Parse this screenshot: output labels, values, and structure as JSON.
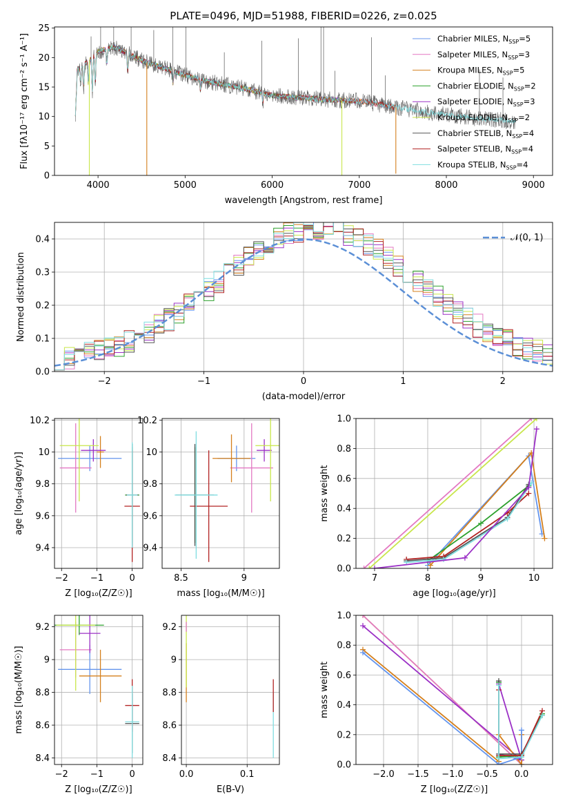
{
  "chart_data": [
    {
      "id": "spectrum",
      "type": "line",
      "title": "PLATE=0496, MJD=51988, FIBERID=0226, z=0.025",
      "xlabel": "wavelength [Angstrom, rest frame]",
      "ylabel": "Flux [fλ10⁻¹⁷ erg cm⁻² s⁻¹ A⁻¹]",
      "xlim": [
        3500,
        9220
      ],
      "ylim": [
        0,
        25.2
      ],
      "xticks": [
        4000,
        5000,
        6000,
        7000,
        8000,
        9000
      ],
      "yticks": [
        0,
        5,
        10,
        15,
        20,
        25
      ],
      "legend_position": "upper-right",
      "continuum_x": [
        3750,
        3800,
        3900,
        4000,
        4100,
        4200,
        4300,
        4500,
        4700,
        5000,
        5300,
        5600,
        6000,
        6300,
        6600,
        7000,
        7300,
        7600,
        8000,
        8300,
        8600,
        8800
      ],
      "continuum_y": [
        17.5,
        18.5,
        19.5,
        21.0,
        21.5,
        21.8,
        21.0,
        19.5,
        18.5,
        17.0,
        15.8,
        15.0,
        13.6,
        13.2,
        12.9,
        12.6,
        11.9,
        11.1,
        10.3,
        9.8,
        9.4,
        9.2
      ],
      "series": [
        {
          "name": "Chabrier MILES, N_SSP=5",
          "color": "#6495ed",
          "x_end": 7420
        },
        {
          "name": "Salpeter MILES, N_SSP=3",
          "color": "#e377c2",
          "x_end": 7420
        },
        {
          "name": "Kroupa MILES, N_SSP=5",
          "color": "#d47f1b",
          "x_end": 7420
        },
        {
          "name": "Chabrier ELODIE, N_SSP=2",
          "color": "#2ca02c",
          "x_end": 6800
        },
        {
          "name": "Salpeter ELODIE, N_SSP=3",
          "color": "#9b30c6",
          "x_end": 6800
        },
        {
          "name": "Kroupa ELODIE, N_SSP=2",
          "color": "#c8e64a",
          "x_end": 6800
        },
        {
          "name": "Chabrier STELIB, N_SSP=4",
          "color": "#555555",
          "x_end": 8800
        },
        {
          "name": "Salpeter STELIB, N_SSP=4",
          "color": "#b22222",
          "x_end": 7420
        },
        {
          "name": "Kroupa STELIB, N_SSP=4",
          "color": "#7fdde0",
          "x_end": 8800
        }
      ],
      "drops": [
        {
          "x": 3900,
          "y": 0,
          "color": "#c8e64a"
        },
        {
          "x": 4560,
          "y": 0,
          "color": "#d47f1b"
        },
        {
          "x": 6800,
          "y": 0,
          "color": "#c8e64a"
        },
        {
          "x": 7420,
          "y": 0.3,
          "color": "#d47f1b"
        }
      ],
      "spikes_x": [
        3920,
        4030,
        4180,
        4380,
        4640,
        4860,
        5010,
        5450,
        5880,
        6300,
        6560,
        6590,
        6720,
        7140,
        7300,
        8380,
        8650
      ]
    },
    {
      "id": "residuals",
      "type": "line",
      "xlabel": "(data-model)/error",
      "ylabel": "Normed distribution",
      "xlim": [
        -2.5,
        2.5
      ],
      "ylim": [
        0,
        0.45
      ],
      "xticks": [
        -2,
        -1,
        0,
        1,
        2
      ],
      "yticks": [
        0.0,
        0.1,
        0.2,
        0.3,
        0.4
      ],
      "grid": true,
      "legend_position": "upper-right",
      "normal_label": "𝒩(0, 1)",
      "normal_color": "#5b8fd6",
      "hist_bin_width": 0.1,
      "hist_x_start": -2.5,
      "hist_colors": [
        "#6495ed",
        "#e377c2",
        "#d47f1b",
        "#2ca02c",
        "#9b30c6",
        "#c8e64a",
        "#555555",
        "#b22222",
        "#7fdde0"
      ]
    },
    {
      "id": "age-z",
      "type": "scatter",
      "xlabel": "Z [log₁₀(Z/Z☉)]",
      "ylabel": "age  [log₁₀(age/yr)]",
      "xlim": [
        -2.2,
        0.3
      ],
      "ylim": [
        9.27,
        10.21
      ],
      "xticks": [
        -2,
        -1,
        0
      ],
      "yticks": [
        9.4,
        9.6,
        9.8,
        10.0,
        10.2
      ],
      "grid": true,
      "points": [
        {
          "x": -1.2,
          "y": 9.96,
          "xerr": 0.9,
          "yerr": 0.08,
          "color": "#6495ed"
        },
        {
          "x": -1.6,
          "y": 9.9,
          "xerr": 0.45,
          "yerr": 0.28,
          "color": "#e377c2"
        },
        {
          "x": -0.9,
          "y": 10.0,
          "xerr": 0.1,
          "yerr": 0.1,
          "color": "#d47f1b"
        },
        {
          "x": 0.0,
          "y": 9.73,
          "xerr": 0.2,
          "yerr": 0.3,
          "color": "#2ca02c"
        },
        {
          "x": -1.1,
          "y": 10.01,
          "xerr": 0.35,
          "yerr": 0.07,
          "color": "#9b30c6"
        },
        {
          "x": -1.5,
          "y": 10.04,
          "xerr": 0.55,
          "yerr": 0.35,
          "color": "#c8e64a"
        },
        {
          "x": 0.0,
          "y": 9.73,
          "xerr": 0.17,
          "yerr": 0.32,
          "color": "#555555"
        },
        {
          "x": 0.0,
          "y": 9.66,
          "xerr": 0.22,
          "yerr": 0.35,
          "color": "#b22222"
        },
        {
          "x": 0.0,
          "y": 9.73,
          "xerr": 0.15,
          "yerr": 0.33,
          "color": "#7fdde0"
        }
      ]
    },
    {
      "id": "age-mass",
      "type": "scatter",
      "xlabel": "mass [log₁₀(M/M☉)]",
      "ylabel": "",
      "xlim": [
        8.35,
        9.28
      ],
      "ylim": [
        9.27,
        10.21
      ],
      "xticks": [
        8.5,
        9.0
      ],
      "yticks": [
        9.4,
        9.6,
        9.8,
        10.0,
        10.2
      ],
      "grid": true,
      "points": [
        {
          "x": 8.94,
          "y": 9.96,
          "xerr": 0.15,
          "yerr": 0.08,
          "color": "#6495ed"
        },
        {
          "x": 9.06,
          "y": 9.9,
          "xerr": 0.17,
          "yerr": 0.28,
          "color": "#e377c2"
        },
        {
          "x": 8.9,
          "y": 9.96,
          "xerr": 0.15,
          "yerr": 0.15,
          "color": "#d47f1b"
        },
        {
          "x": 8.61,
          "y": 9.73,
          "xerr": 0.1,
          "yerr": 0.3,
          "color": "#2ca02c"
        },
        {
          "x": 9.16,
          "y": 10.01,
          "xerr": 0.06,
          "yerr": 0.07,
          "color": "#9b30c6"
        },
        {
          "x": 9.21,
          "y": 10.04,
          "xerr": 0.12,
          "yerr": 0.35,
          "color": "#c8e64a"
        },
        {
          "x": 8.61,
          "y": 9.73,
          "xerr": 0.15,
          "yerr": 0.32,
          "color": "#555555"
        },
        {
          "x": 8.72,
          "y": 9.66,
          "xerr": 0.15,
          "yerr": 0.35,
          "color": "#b22222"
        },
        {
          "x": 8.62,
          "y": 9.73,
          "xerr": 0.17,
          "yerr": 0.4,
          "color": "#7fdde0"
        }
      ]
    },
    {
      "id": "weight-age",
      "type": "line",
      "xlabel": "age  [log₁₀(age/yr)]",
      "ylabel": "mass weight",
      "xlim": [
        6.65,
        10.35
      ],
      "ylim": [
        0,
        1.0
      ],
      "xticks": [
        7,
        8,
        9,
        10
      ],
      "yticks": [
        0.0,
        0.2,
        0.4,
        0.6,
        0.8,
        1.0
      ],
      "grid": true,
      "series": [
        {
          "color": "#e377c2",
          "x": [
            6.8,
            9.95
          ],
          "y": [
            0.0,
            1.0
          ]
        },
        {
          "color": "#c8e64a",
          "x": [
            6.9,
            10.05
          ],
          "y": [
            0.0,
            1.0
          ]
        },
        {
          "color": "#6495ed",
          "x": [
            8.0,
            9.9,
            10.15
          ],
          "y": [
            0.02,
            0.75,
            0.23
          ]
        },
        {
          "color": "#d47f1b",
          "x": [
            8.05,
            9.95,
            10.2
          ],
          "y": [
            0.02,
            0.77,
            0.2
          ]
        },
        {
          "color": "#2ca02c",
          "x": [
            8.0,
            9.0,
            9.9
          ],
          "y": [
            0.05,
            0.3,
            0.55
          ]
        },
        {
          "color": "#555555",
          "x": [
            7.6,
            8.3,
            9.5,
            9.9
          ],
          "y": [
            0.05,
            0.07,
            0.34,
            0.56
          ]
        },
        {
          "color": "#b22222",
          "x": [
            7.6,
            8.3,
            9.5,
            9.9
          ],
          "y": [
            0.06,
            0.08,
            0.37,
            0.5
          ]
        },
        {
          "color": "#7fdde0",
          "x": [
            7.6,
            8.3,
            9.5,
            9.95
          ],
          "y": [
            0.04,
            0.06,
            0.33,
            0.57
          ]
        },
        {
          "color": "#9b30c6",
          "x": [
            7.0,
            8.7,
            9.9,
            10.05
          ],
          "y": [
            0.0,
            0.07,
            0.54,
            0.93
          ]
        }
      ]
    },
    {
      "id": "mass-z",
      "type": "scatter",
      "xlabel": "Z [log₁₀(Z/Z☉)]",
      "ylabel": "mass [log₁₀(M/M☉)]",
      "xlim": [
        -2.2,
        0.3
      ],
      "ylim": [
        8.36,
        9.27
      ],
      "xticks": [
        -2,
        -1,
        0
      ],
      "yticks": [
        8.4,
        8.6,
        8.8,
        9.0,
        9.2
      ],
      "grid": true,
      "points": [
        {
          "x": -1.2,
          "y": 8.94,
          "xerr": 0.9,
          "yerr": 0.15,
          "color": "#6495ed"
        },
        {
          "x": -1.6,
          "y": 9.06,
          "xerr": 0.45,
          "yerr": 0.17,
          "color": "#e377c2"
        },
        {
          "x": -0.9,
          "y": 8.9,
          "xerr": 0.6,
          "yerr": 0.16,
          "color": "#d47f1b"
        },
        {
          "x": -1.5,
          "y": 9.21,
          "xerr": 0.7,
          "yerr": 0.06,
          "color": "#2ca02c"
        },
        {
          "x": -1.2,
          "y": 9.16,
          "xerr": 0.3,
          "yerr": 0.12,
          "color": "#9b30c6"
        },
        {
          "x": -1.6,
          "y": 9.21,
          "xerr": 0.55,
          "yerr": 0.4,
          "color": "#c8e64a"
        },
        {
          "x": 0.0,
          "y": 8.61,
          "xerr": 0.2,
          "yerr": 0.18,
          "color": "#555555"
        },
        {
          "x": 0.0,
          "y": 8.72,
          "xerr": 0.2,
          "yerr": 0.16,
          "color": "#b22222"
        },
        {
          "x": 0.0,
          "y": 8.62,
          "xerr": 0.2,
          "yerr": 0.22,
          "color": "#7fdde0"
        }
      ]
    },
    {
      "id": "mass-ebv",
      "type": "scatter",
      "xlabel": "E(B-V)",
      "ylabel": "",
      "xlim": [
        -0.008,
        0.153
      ],
      "ylim": [
        8.36,
        9.27
      ],
      "xticks": [
        0.0,
        0.1
      ],
      "yticks": [
        8.4,
        8.6,
        8.8,
        9.0,
        9.2
      ],
      "grid": true,
      "points": [
        {
          "x": 0.0,
          "y": 8.92,
          "yerr": 0.18,
          "color": "#d47f1b"
        },
        {
          "x": 0.0,
          "y": 9.05,
          "yerr": 0.22,
          "color": "#c8e64a"
        },
        {
          "x": 0.0,
          "y": 9.2,
          "yerr": 0.03,
          "color": "#e377c2"
        },
        {
          "x": 0.143,
          "y": 8.6,
          "yerr": 0.2,
          "color": "#7fdde0"
        },
        {
          "x": 0.143,
          "y": 8.78,
          "yerr": 0.1,
          "color": "#b22222"
        }
      ]
    },
    {
      "id": "weight-z",
      "type": "line",
      "xlabel": "Z [log₁₀(Z/Z☉)]",
      "ylabel": "mass weight",
      "xlim": [
        -2.4,
        0.45
      ],
      "ylim": [
        0,
        1.0
      ],
      "xticks": [
        -2.0,
        -1.5,
        -1.0,
        -0.5,
        0.0
      ],
      "yticks": [
        0.0,
        0.2,
        0.4,
        0.6,
        0.8,
        1.0
      ],
      "grid": true,
      "series": [
        {
          "color": "#c8e64a",
          "x": [
            -2.3,
            0.0
          ],
          "y": [
            1.0,
            0.0
          ]
        },
        {
          "color": "#e377c2",
          "x": [
            -2.3,
            0.0
          ],
          "y": [
            1.0,
            0.0
          ]
        },
        {
          "color": "#9b30c6",
          "x": [
            -2.3,
            0.0,
            -0.33,
            -0.33,
            0.0
          ],
          "y": [
            0.93,
            0.03,
            0.54,
            0.07,
            0.03
          ]
        },
        {
          "color": "#d47f1b",
          "x": [
            -2.3,
            -0.33,
            -0.33,
            0.0,
            0.0
          ],
          "y": [
            0.77,
            0.02,
            0.2,
            0.0,
            0.2
          ]
        },
        {
          "color": "#6495ed",
          "x": [
            -2.3,
            -0.33,
            0.0,
            0.0
          ],
          "y": [
            0.75,
            0.0,
            0.05,
            0.23
          ]
        },
        {
          "color": "#2ca02c",
          "x": [
            -0.33,
            -0.33,
            0.0,
            0.3
          ],
          "y": [
            0.55,
            0.05,
            0.06,
            0.34
          ]
        },
        {
          "color": "#555555",
          "x": [
            -0.33,
            -0.33,
            0.0,
            0.3
          ],
          "y": [
            0.56,
            0.07,
            0.07,
            0.33
          ]
        },
        {
          "color": "#b22222",
          "x": [
            -0.33,
            -0.33,
            0.0,
            0.3
          ],
          "y": [
            0.5,
            0.06,
            0.06,
            0.36
          ]
        },
        {
          "color": "#7fdde0",
          "x": [
            -0.33,
            -0.33,
            0.0,
            0.3
          ],
          "y": [
            0.53,
            0.04,
            0.05,
            0.33
          ]
        }
      ]
    }
  ]
}
